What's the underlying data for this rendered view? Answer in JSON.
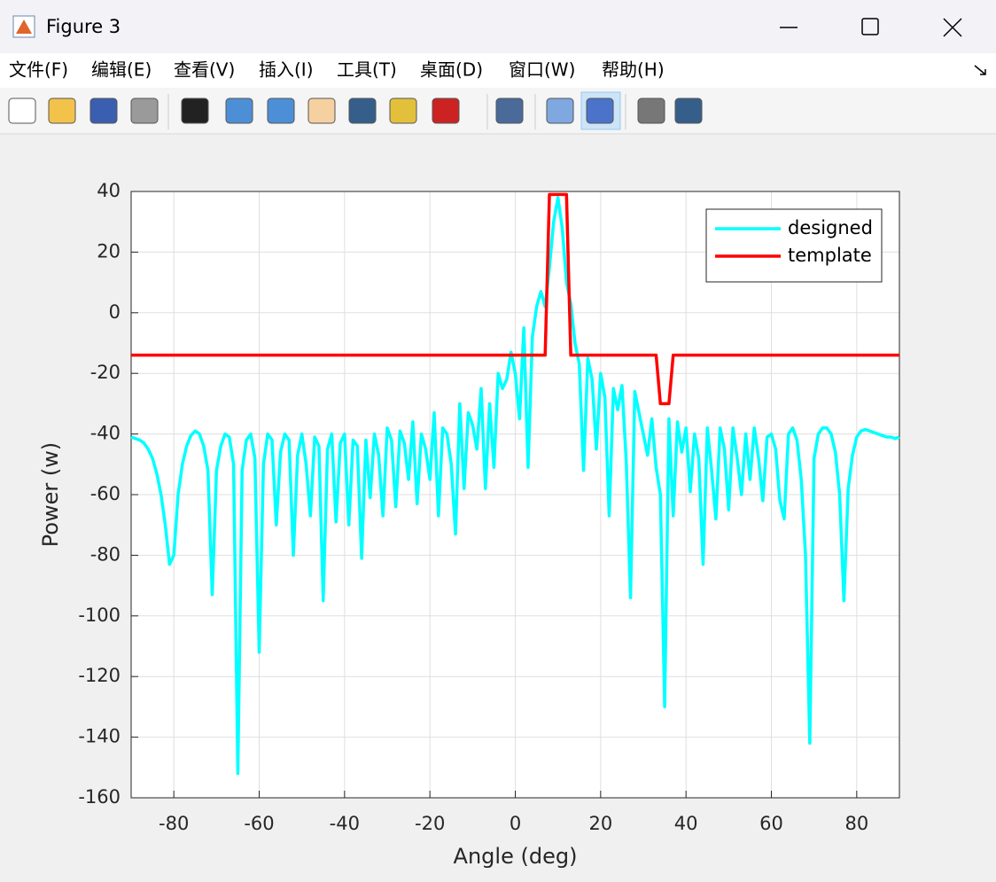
{
  "window": {
    "title": "Figure 3"
  },
  "menu": [
    "文件(F)",
    "编辑(E)",
    "查看(V)",
    "插入(I)",
    "工具(T)",
    "桌面(D)",
    "窗口(W)",
    "帮助(H)"
  ],
  "chart_data": {
    "type": "line",
    "x_label": "Angle (deg)",
    "y_label": "Power (w)",
    "xlim": [
      -90,
      90
    ],
    "ylim": [
      -160,
      40
    ],
    "xticks": [
      -80,
      -60,
      -40,
      -20,
      0,
      20,
      40,
      60,
      80
    ],
    "yticks": [
      -160,
      -140,
      -120,
      -100,
      -80,
      -60,
      -40,
      -20,
      0,
      20,
      40
    ],
    "grid": true,
    "legend": "upper right",
    "series": [
      {
        "name": "designed",
        "color": "#00ffff",
        "x": [
          -90,
          -89,
          -88,
          -87,
          -86,
          -85,
          -84,
          -83,
          -82,
          -81,
          -80,
          -79,
          -78,
          -77,
          -76,
          -75,
          -74,
          -73,
          -72,
          -71,
          -70,
          -69,
          -68,
          -67,
          -66,
          -65,
          -64,
          -63,
          -62,
          -61,
          -60,
          -59,
          -58,
          -57,
          -56,
          -55,
          -54,
          -53,
          -52,
          -51,
          -50,
          -49,
          -48,
          -47,
          -46,
          -45,
          -44,
          -43,
          -42,
          -41,
          -40,
          -39,
          -38,
          -37,
          -36,
          -35,
          -34,
          -33,
          -32,
          -31,
          -30,
          -29,
          -28,
          -27,
          -26,
          -25,
          -24,
          -23,
          -22,
          -21,
          -20,
          -19,
          -18,
          -17,
          -16,
          -15,
          -14,
          -13,
          -12,
          -11,
          -10,
          -9,
          -8,
          -7,
          -6,
          -5,
          -4,
          -3,
          -2,
          -1,
          0,
          1,
          2,
          3,
          4,
          5,
          6,
          7,
          8,
          9,
          10,
          11,
          12,
          13,
          14,
          15,
          16,
          17,
          18,
          19,
          20,
          21,
          22,
          23,
          24,
          25,
          26,
          27,
          28,
          29,
          30,
          31,
          32,
          33,
          34,
          35,
          36,
          37,
          38,
          39,
          40,
          41,
          42,
          43,
          44,
          45,
          46,
          47,
          48,
          49,
          50,
          51,
          52,
          53,
          54,
          55,
          56,
          57,
          58,
          59,
          60,
          61,
          62,
          63,
          64,
          65,
          66,
          67,
          68,
          69,
          70,
          71,
          72,
          73,
          74,
          75,
          76,
          77,
          78,
          79,
          80,
          81,
          82,
          83,
          84,
          85,
          86,
          87,
          88,
          89,
          90
        ],
        "values": [
          -41,
          -41.5,
          -42,
          -43,
          -45,
          -48,
          -53,
          -60,
          -70,
          -83,
          -80,
          -60,
          -50,
          -44,
          -40.5,
          -39,
          -40,
          -44,
          -52,
          -93,
          -52,
          -44,
          -40,
          -41,
          -50,
          -152,
          -52,
          -42,
          -40,
          -48,
          -112,
          -50,
          -40,
          -42,
          -70,
          -46,
          -40,
          -42,
          -80,
          -47,
          -40,
          -50,
          -67,
          -41,
          -44,
          -95,
          -45,
          -40,
          -69,
          -43,
          -40,
          -70,
          -42,
          -44,
          -81,
          -42,
          -61,
          -40,
          -47,
          -67,
          -38,
          -42,
          -64,
          -39,
          -43,
          -55,
          -36,
          -63,
          -40,
          -45,
          -55,
          -33,
          -67,
          -38,
          -40,
          -50,
          -73,
          -30,
          -58,
          -33,
          -37,
          -45,
          -25,
          -58,
          -30,
          -51,
          -20,
          -25,
          -22,
          -13,
          -20,
          -35,
          -5,
          -51,
          -8,
          2,
          7,
          2,
          15,
          30,
          38,
          28,
          10,
          3,
          -10,
          -17,
          -52,
          -15,
          -22,
          -45,
          -20,
          -28,
          -67,
          -25,
          -32,
          -24,
          -49,
          -94,
          -26,
          -33,
          -40,
          -47,
          -35,
          -51,
          -60,
          -130,
          -35,
          -67,
          -36,
          -46,
          -38,
          -59,
          -40,
          -48,
          -83,
          -38,
          -52,
          -68,
          -38,
          -45,
          -65,
          -38,
          -48,
          -60,
          -40,
          -55,
          -38,
          -48,
          -62,
          -41,
          -40,
          -45,
          -62,
          -68,
          -40,
          -38,
          -42,
          -55,
          -80,
          -142,
          -48,
          -40,
          -38,
          -38,
          -40,
          -46,
          -60,
          -95,
          -58,
          -47,
          -41,
          -39,
          -38.5,
          -39,
          -39.5,
          -40,
          -40.5,
          -41,
          -41,
          -41.5,
          -41
        ]
      },
      {
        "name": "template",
        "color": "#ff0000",
        "x": [
          -90,
          7,
          8,
          12,
          13,
          33,
          34,
          36,
          37,
          90
        ],
        "values": [
          -14,
          -14,
          39,
          39,
          -14,
          -14,
          -30,
          -30,
          -14,
          -14
        ]
      }
    ]
  }
}
